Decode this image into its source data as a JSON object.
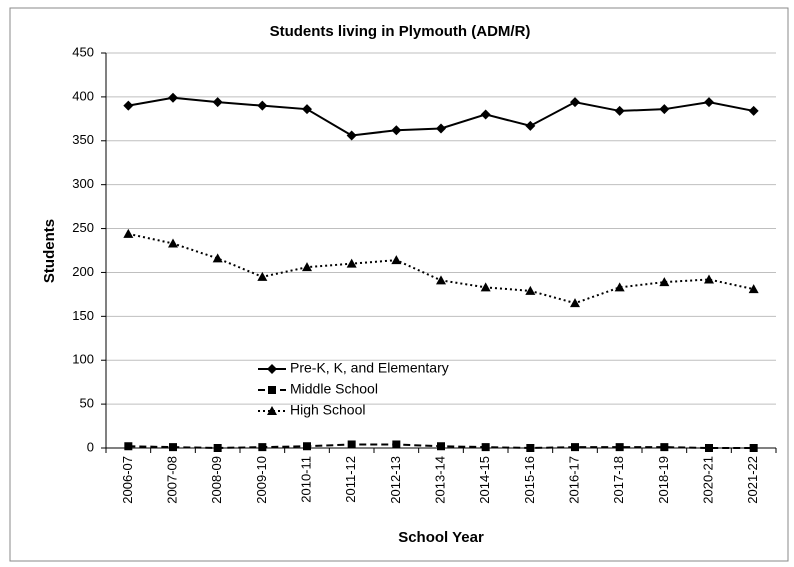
{
  "chart_data": {
    "type": "line",
    "title": "Students living in Plymouth (ADM/R)",
    "x_label": "School Year",
    "y_label": "Students",
    "categories": [
      "2006-07",
      "2007-08",
      "2008-09",
      "2009-10",
      "2010-11",
      "2011-12",
      "2012-13",
      "2013-14",
      "2014-15",
      "2015-16",
      "2016-17",
      "2017-18",
      "2018-19",
      "2020-21",
      "2021-22"
    ],
    "series": [
      {
        "name": "Pre-K, K, and Elementary",
        "color": "#000000",
        "line_style": "solid",
        "marker": "diamond",
        "values": [
          390,
          399,
          394,
          390,
          386,
          356,
          362,
          364,
          380,
          367,
          394,
          384,
          386,
          394,
          384
        ]
      },
      {
        "name": "Middle School",
        "color": "#000000",
        "line_style": "dashed",
        "marker": "square",
        "values": [
          2,
          1,
          0,
          1,
          2,
          4,
          4,
          2,
          1,
          0,
          1,
          1,
          1,
          0,
          0
        ]
      },
      {
        "name": "High School",
        "color": "#000000",
        "line_style": "dotted",
        "marker": "triangle",
        "values": [
          244,
          233,
          216,
          195,
          206,
          210,
          214,
          191,
          183,
          179,
          165,
          183,
          189,
          192,
          181
        ]
      }
    ],
    "ylim": [
      0,
      450
    ],
    "yticks": [
      0,
      50,
      100,
      150,
      200,
      250,
      300,
      350,
      400,
      450
    ],
    "grid": true
  }
}
